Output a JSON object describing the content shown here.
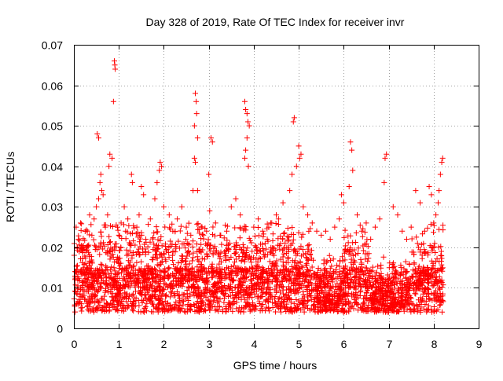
{
  "chart_data": {
    "type": "scatter",
    "title": "Day 328 of 2019, Rate Of TEC Index for receiver invr",
    "xlabel": "GPS time / hours",
    "ylabel": "ROTI / TECUs",
    "xlim": [
      0,
      9
    ],
    "ylim": [
      0,
      0.07
    ],
    "xticks": [
      "0",
      "1",
      "2",
      "3",
      "4",
      "5",
      "6",
      "7",
      "8",
      "9"
    ],
    "yticks": [
      "0",
      "0.01",
      "0.02",
      "0.03",
      "0.04",
      "0.05",
      "0.06",
      "0.07"
    ],
    "grid": true,
    "marker": "+",
    "color": "#ff0000",
    "series": [
      {
        "name": "ROTI",
        "points": [
          [
            0.9,
            0.066
          ],
          [
            0.91,
            0.065
          ],
          [
            0.92,
            0.064
          ],
          [
            0.88,
            0.056
          ],
          [
            0.52,
            0.048
          ],
          [
            0.55,
            0.047
          ],
          [
            0.8,
            0.043
          ],
          [
            0.85,
            0.042
          ],
          [
            0.78,
            0.04
          ],
          [
            0.6,
            0.038
          ],
          [
            0.58,
            0.036
          ],
          [
            0.62,
            0.034
          ],
          [
            0.65,
            0.033
          ],
          [
            0.55,
            0.032
          ],
          [
            0.5,
            0.03
          ],
          [
            1.28,
            0.038
          ],
          [
            1.3,
            0.036
          ],
          [
            1.12,
            0.03
          ],
          [
            1.5,
            0.035
          ],
          [
            1.55,
            0.033
          ],
          [
            1.92,
            0.041
          ],
          [
            1.95,
            0.04
          ],
          [
            1.9,
            0.039
          ],
          [
            1.85,
            0.036
          ],
          [
            1.8,
            0.032
          ],
          [
            2.0,
            0.03
          ],
          [
            2.12,
            0.028
          ],
          [
            2.3,
            0.027
          ],
          [
            2.4,
            0.03
          ],
          [
            2.7,
            0.058
          ],
          [
            2.72,
            0.056
          ],
          [
            2.73,
            0.053
          ],
          [
            2.68,
            0.05
          ],
          [
            2.75,
            0.047
          ],
          [
            2.68,
            0.042
          ],
          [
            2.7,
            0.041
          ],
          [
            2.65,
            0.034
          ],
          [
            2.75,
            0.034
          ],
          [
            3.05,
            0.047
          ],
          [
            3.08,
            0.046
          ],
          [
            3.0,
            0.038
          ],
          [
            3.02,
            0.029
          ],
          [
            3.8,
            0.056
          ],
          [
            3.82,
            0.054
          ],
          [
            3.85,
            0.053
          ],
          [
            3.87,
            0.051
          ],
          [
            3.9,
            0.05
          ],
          [
            3.85,
            0.047
          ],
          [
            3.82,
            0.044
          ],
          [
            3.8,
            0.042
          ],
          [
            3.88,
            0.04
          ],
          [
            3.6,
            0.032
          ],
          [
            3.5,
            0.03
          ],
          [
            3.7,
            0.028
          ],
          [
            4.9,
            0.052
          ],
          [
            4.88,
            0.051
          ],
          [
            5.0,
            0.045
          ],
          [
            5.05,
            0.043
          ],
          [
            5.02,
            0.042
          ],
          [
            4.95,
            0.04
          ],
          [
            4.85,
            0.038
          ],
          [
            4.8,
            0.034
          ],
          [
            4.65,
            0.031
          ],
          [
            5.1,
            0.03
          ],
          [
            5.2,
            0.028
          ],
          [
            5.3,
            0.026
          ],
          [
            5.4,
            0.024
          ],
          [
            6.15,
            0.046
          ],
          [
            6.18,
            0.044
          ],
          [
            6.2,
            0.039
          ],
          [
            6.12,
            0.035
          ],
          [
            5.95,
            0.033
          ],
          [
            6.0,
            0.031
          ],
          [
            6.3,
            0.028
          ],
          [
            6.5,
            0.026
          ],
          [
            6.95,
            0.043
          ],
          [
            6.92,
            0.042
          ],
          [
            6.9,
            0.036
          ],
          [
            7.1,
            0.03
          ],
          [
            7.2,
            0.028
          ],
          [
            7.6,
            0.034
          ],
          [
            7.7,
            0.031
          ],
          [
            7.9,
            0.035
          ],
          [
            7.95,
            0.033
          ],
          [
            8.2,
            0.042
          ],
          [
            8.18,
            0.041
          ],
          [
            8.15,
            0.038
          ],
          [
            8.12,
            0.034
          ],
          [
            8.1,
            0.031
          ],
          [
            0.05,
            0.025
          ],
          [
            0.1,
            0.022
          ],
          [
            0.15,
            0.026
          ],
          [
            0.2,
            0.02
          ],
          [
            0.3,
            0.024
          ],
          [
            0.35,
            0.028
          ],
          [
            0.4,
            0.023
          ],
          [
            0.45,
            0.027
          ],
          [
            0.7,
            0.025
          ],
          [
            0.75,
            0.028
          ],
          [
            1.0,
            0.023
          ],
          [
            1.05,
            0.026
          ],
          [
            1.15,
            0.024
          ],
          [
            1.2,
            0.027
          ],
          [
            1.4,
            0.025
          ],
          [
            1.45,
            0.028
          ],
          [
            1.6,
            0.022
          ],
          [
            1.7,
            0.027
          ],
          [
            2.2,
            0.024
          ],
          [
            2.5,
            0.025
          ],
          [
            2.6,
            0.023
          ],
          [
            2.85,
            0.025
          ],
          [
            2.95,
            0.024
          ],
          [
            3.15,
            0.026
          ],
          [
            3.25,
            0.023
          ],
          [
            3.4,
            0.024
          ],
          [
            4.0,
            0.025
          ],
          [
            4.1,
            0.027
          ],
          [
            4.2,
            0.024
          ],
          [
            4.3,
            0.022
          ],
          [
            4.4,
            0.026
          ],
          [
            4.5,
            0.028
          ],
          [
            4.55,
            0.027
          ],
          [
            5.5,
            0.023
          ],
          [
            5.6,
            0.024
          ],
          [
            5.7,
            0.022
          ],
          [
            5.8,
            0.025
          ],
          [
            5.9,
            0.027
          ],
          [
            6.4,
            0.024
          ],
          [
            6.6,
            0.022
          ],
          [
            6.7,
            0.025
          ],
          [
            6.8,
            0.027
          ],
          [
            7.3,
            0.024
          ],
          [
            7.4,
            0.022
          ],
          [
            7.5,
            0.025
          ],
          [
            7.8,
            0.024
          ],
          [
            8.0,
            0.026
          ],
          [
            8.05,
            0.028
          ]
        ],
        "dense_band": {
          "x_range": [
            0.0,
            8.22
          ],
          "y_floor": 0.003,
          "note": "thousands of points, mostly between 0.003 and 0.022 TECUs"
        }
      }
    ]
  }
}
